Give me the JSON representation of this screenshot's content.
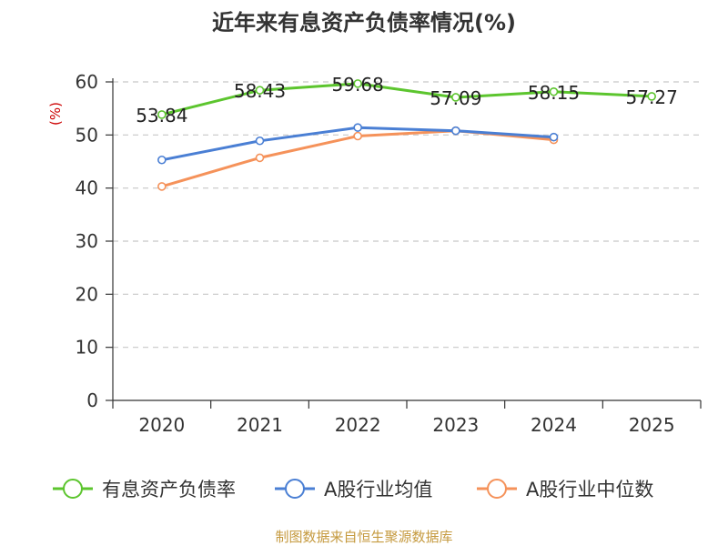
{
  "chart_data": {
    "type": "line",
    "title": "近年来有息资产负债率情况(%)",
    "ylabel": "(%)",
    "xlabel": "",
    "ylim": [
      0,
      60
    ],
    "yticks": [
      0,
      10,
      20,
      30,
      40,
      50,
      60
    ],
    "categories": [
      "2020",
      "2021",
      "2022",
      "2023",
      "2024",
      "2025"
    ],
    "grid": true,
    "legend_position": "bottom",
    "series": [
      {
        "name": "有息资产负债率",
        "color": "#5cc52e",
        "values": [
          53.84,
          58.43,
          59.68,
          57.09,
          58.15,
          57.27
        ],
        "labels": [
          "53.84",
          "58.43",
          "59.68",
          "57.09",
          "58.15",
          "57.27"
        ]
      },
      {
        "name": "A股行业均值",
        "color": "#4a7fd4",
        "values": [
          45.3,
          48.9,
          51.4,
          50.8,
          49.6,
          null
        ]
      },
      {
        "name": "A股行业中位数",
        "color": "#f5925a",
        "values": [
          40.3,
          45.7,
          49.8,
          50.8,
          49.1,
          null
        ]
      }
    ],
    "source_note": "制图数据来自恒生聚源数据库"
  }
}
